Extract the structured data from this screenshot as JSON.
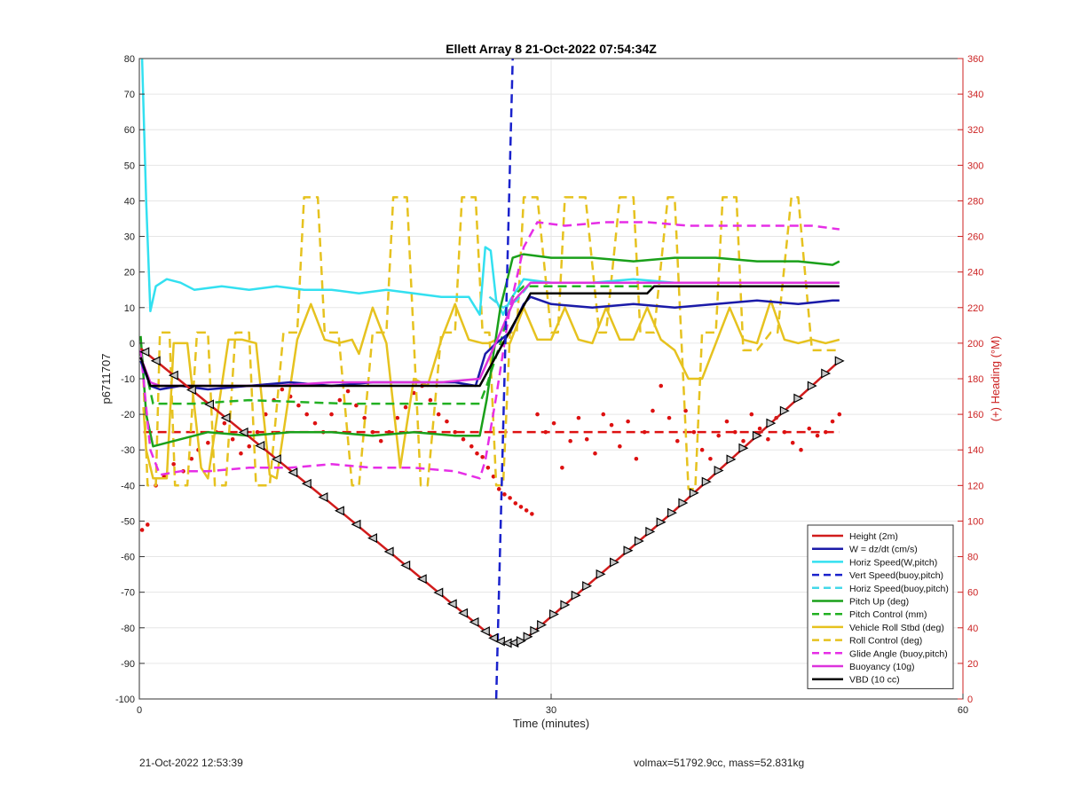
{
  "footer": {
    "timestamp": "21-Oct-2022 12:53:39",
    "volmax_mass": "volmax=51792.9cc, mass=52.831kg"
  },
  "chart_data": {
    "type": "line",
    "title": "Ellett Array 8 21-Oct-2022 07:54:34Z",
    "xlabel": "Time (minutes)",
    "ylabel": "p6711707",
    "ylabel_right": "(+) Heading (°M)",
    "xlim": [
      0,
      60
    ],
    "ylim": [
      -100,
      80
    ],
    "ylim_right": [
      0,
      360
    ],
    "xticks": [
      0,
      30,
      60
    ],
    "yticks": [
      -100,
      -90,
      -80,
      -70,
      -60,
      -50,
      -40,
      -30,
      -20,
      -10,
      0,
      10,
      20,
      30,
      40,
      50,
      60,
      70,
      80
    ],
    "yticks_right": [
      0,
      20,
      40,
      60,
      80,
      100,
      120,
      140,
      160,
      180,
      200,
      220,
      240,
      260,
      280,
      300,
      320,
      340,
      360
    ],
    "grid": true,
    "legend_position": "bottom-right",
    "colors": {
      "height": "#d11c1c",
      "w": "#1a1aa8",
      "horiz_w": "#33e0f0",
      "vert_buoy": "#1a22cc",
      "horiz_buoy": "#44d8e8",
      "pitch": "#1aa01a",
      "pitch_control": "#22b022",
      "roll": "#e6c21f",
      "roll_control": "#e6c21f",
      "glide": "#e62ee6",
      "buoyancy": "#dd33dd",
      "vbd": "#000000",
      "heading": "#dd1111",
      "right_axis": "#cc2222"
    },
    "series": [
      {
        "name": "Height (2m)",
        "style": "solid",
        "color": "height",
        "x": [
          0.1,
          13.0,
          26.0,
          27.0,
          28.0,
          39.0,
          51.0
        ],
        "y": [
          -1.5,
          -42.0,
          -83.5,
          -84.5,
          -83.5,
          -47.0,
          -5.0
        ]
      },
      {
        "name": "W = dz/dt (cm/s)",
        "style": "solid",
        "color": "w",
        "x": [
          0.1,
          0.8,
          1.5,
          3,
          5,
          8,
          11,
          14,
          17,
          20,
          23,
          24.5,
          25.2,
          26,
          27,
          28,
          28.5,
          30,
          33,
          36,
          39,
          42,
          45,
          48,
          50.5,
          51
        ],
        "y": [
          -5,
          -12,
          -13,
          -12,
          -13,
          -12,
          -11,
          -12,
          -11,
          -11,
          -11,
          -12,
          -3,
          0,
          3,
          11,
          13,
          11,
          10,
          11,
          10,
          11,
          12,
          11,
          12,
          12
        ]
      },
      {
        "name": "Horiz Speed(W,pitch)",
        "style": "solid",
        "color": "horiz_w",
        "x": [
          0.2,
          0.5,
          0.8,
          1.2,
          2,
          3,
          4,
          6,
          8,
          10,
          12,
          14,
          16,
          18,
          20,
          22,
          24,
          24.8,
          25.2,
          25.6,
          26,
          26.5,
          27,
          28,
          30,
          33,
          36,
          39,
          42,
          45,
          48,
          50,
          51
        ],
        "y": [
          80,
          40,
          9,
          16,
          18,
          17,
          15,
          16,
          15,
          16,
          15,
          15,
          14,
          15,
          14,
          13,
          13,
          8,
          27,
          26,
          12,
          8,
          12,
          18,
          17,
          17,
          18,
          17,
          17,
          17,
          17,
          17,
          17
        ]
      },
      {
        "name": "Vert Speed(buoy,pitch)",
        "style": "dashed",
        "color": "vert_buoy",
        "x": [
          26.0,
          27.2
        ],
        "y": [
          -100,
          80
        ]
      },
      {
        "name": "Horiz Speed(buoy,pitch)",
        "style": "dashed",
        "color": "horiz_buoy",
        "x": [
          25.5,
          26.5,
          27.5,
          28.5,
          30,
          35,
          40,
          45,
          50,
          51
        ],
        "y": [
          13,
          10,
          12,
          17,
          17,
          17,
          17,
          17,
          17,
          17
        ]
      },
      {
        "name": "Pitch Up (deg)",
        "style": "solid",
        "color": "pitch",
        "x": [
          0.1,
          0.5,
          1.0,
          2,
          3,
          5,
          8,
          11,
          14,
          17,
          20,
          23,
          24.8,
          25.3,
          26.3,
          27.2,
          28,
          30,
          33,
          36,
          39,
          42,
          45,
          48,
          50.5,
          51
        ],
        "y": [
          2,
          -20,
          -29,
          -28,
          -27,
          -25,
          -26,
          -25,
          -25,
          -26,
          -25,
          -26,
          -26,
          -16,
          10,
          24,
          25,
          24,
          24,
          23,
          24,
          24,
          23,
          23,
          22,
          23
        ]
      },
      {
        "name": "Pitch Control (mm)",
        "style": "dashed",
        "color": "pitch_control",
        "x": [
          0.1,
          0.6,
          1,
          4,
          8,
          15,
          22,
          24.8,
          25.3,
          26.3,
          27.2,
          28,
          35,
          40,
          45,
          51
        ],
        "y": [
          -3,
          -10,
          -17,
          -17,
          -16,
          -17,
          -17,
          -17,
          -12,
          0,
          13,
          16,
          16,
          16,
          16,
          16
        ]
      },
      {
        "name": "Vehicle Roll Stbd (deg)",
        "style": "solid",
        "color": "roll",
        "x": [
          0.3,
          0.5,
          1.0,
          2.0,
          2.5,
          3.5,
          4.5,
          5.0,
          6.5,
          7.5,
          8.5,
          9.5,
          10,
          11.5,
          12.5,
          13.5,
          14.5,
          15.5,
          16,
          17,
          18,
          19,
          20,
          21,
          22,
          23,
          24,
          25,
          25.5,
          26,
          26.5,
          27,
          28,
          29,
          30,
          31,
          32,
          33,
          34,
          35,
          36,
          37,
          38,
          39,
          40,
          41,
          42,
          43,
          44,
          45,
          46,
          47,
          48,
          49,
          50,
          51
        ],
        "y": [
          -18,
          -30,
          -38,
          -38,
          0,
          0,
          -35,
          -38,
          1,
          1,
          0,
          -37,
          -38,
          1,
          11,
          1,
          0,
          1,
          -3,
          10,
          0,
          -35,
          -10,
          -12,
          1,
          11,
          1,
          0,
          0,
          1,
          0,
          0,
          10,
          1,
          1,
          10,
          1,
          0,
          10,
          1,
          1,
          10,
          1,
          -2,
          -10,
          -10,
          0,
          10,
          1,
          0,
          12,
          1,
          0,
          1,
          0,
          1
        ]
      },
      {
        "name": "Roll Control (deg)",
        "style": "dashed",
        "color": "roll_control",
        "x": [
          0.3,
          0.6,
          1.2,
          1.5,
          2.2,
          2.6,
          3.5,
          4.2,
          5.0,
          5.5,
          6.3,
          7.0,
          8.0,
          8.5,
          9.5,
          10.5,
          11.5,
          12.0,
          13.0,
          13.5,
          14.5,
          15.5,
          16.0,
          17.0,
          18.0,
          18.5,
          19.5,
          20.5,
          21.0,
          22.0,
          23.0,
          23.5,
          24.5,
          25.0,
          25.5,
          26.0,
          26.5,
          27.0,
          27.5,
          28.0,
          29.0,
          30.0,
          30.5,
          31.0,
          32.5,
          33.5,
          34.0,
          35.0,
          36.0,
          36.5,
          37.5,
          38.5,
          39.0,
          40.0,
          40.5,
          41.0,
          42.0,
          42.5,
          43.5,
          44.0,
          45.0,
          46.0,
          46.5,
          47.5,
          48.0,
          49.0,
          50.0,
          51.0
        ],
        "y": [
          -10,
          -40,
          -40,
          3,
          3,
          -40,
          -40,
          3,
          3,
          -40,
          -40,
          3,
          3,
          -40,
          -40,
          3,
          3,
          41,
          41,
          3,
          3,
          -40,
          -40,
          3,
          3,
          41,
          41,
          -40,
          -40,
          3,
          3,
          41,
          41,
          3,
          3,
          -40,
          -40,
          3,
          3,
          41,
          41,
          3,
          3,
          41,
          41,
          3,
          3,
          41,
          41,
          3,
          3,
          41,
          41,
          -41,
          -41,
          3,
          3,
          41,
          41,
          -2,
          -2,
          3,
          3,
          41,
          41,
          -2,
          -2,
          -2
        ]
      },
      {
        "name": "Glide Angle (buoy,pitch)",
        "style": "dashed",
        "color": "glide",
        "x": [
          0.1,
          0.8,
          1.5,
          3,
          5,
          8,
          11,
          14,
          17,
          20,
          23,
          24.8,
          25.2,
          26,
          27,
          28,
          29,
          31,
          34,
          37,
          40,
          43,
          46,
          49,
          51
        ],
        "y": [
          -2,
          -30,
          -37,
          -36,
          -36,
          -35,
          -35,
          -34,
          -35,
          -35,
          -36,
          -38,
          -33,
          -15,
          10,
          27,
          34,
          33,
          34,
          34,
          33,
          33,
          33,
          33,
          32
        ]
      },
      {
        "name": "Buoyancy (10g)",
        "style": "solid",
        "color": "buoyancy",
        "x": [
          0.1,
          0.8,
          1.5,
          3,
          6,
          10,
          14,
          18,
          22,
          24.8,
          26.3,
          27.3,
          28.5,
          30,
          33,
          36,
          39,
          42,
          45,
          48,
          51
        ],
        "y": [
          -4,
          -11,
          -12,
          -12,
          -12,
          -12,
          -11,
          -11,
          -11,
          -10,
          3,
          12,
          17,
          17,
          17,
          17,
          17,
          17,
          17,
          17,
          17
        ]
      },
      {
        "name": "VBD (10 cc)",
        "style": "solid",
        "color": "vbd",
        "x": [
          0.1,
          0.8,
          24.8,
          26.5,
          28.5,
          37.0,
          37.5,
          51.0
        ],
        "y": [
          -4,
          -12,
          -12,
          0,
          14,
          14,
          16,
          16
        ]
      }
    ],
    "heading_reference": {
      "style": "dashed",
      "color": "heading",
      "value_right": 150,
      "x": [
        0.3,
        51
      ]
    },
    "heading_points_right": [
      [
        0.2,
        95
      ],
      [
        0.6,
        98
      ],
      [
        1.2,
        120
      ],
      [
        1.8,
        125
      ],
      [
        2.5,
        132
      ],
      [
        3.2,
        128
      ],
      [
        3.8,
        135
      ],
      [
        4.3,
        140
      ],
      [
        5.0,
        144
      ],
      [
        5.6,
        150
      ],
      [
        6.2,
        155
      ],
      [
        6.8,
        146
      ],
      [
        7.4,
        138
      ],
      [
        8.0,
        142
      ],
      [
        8.6,
        150
      ],
      [
        9.2,
        160
      ],
      [
        9.8,
        168
      ],
      [
        10.4,
        174
      ],
      [
        11.0,
        170
      ],
      [
        11.6,
        165
      ],
      [
        12.2,
        160
      ],
      [
        12.8,
        155
      ],
      [
        13.4,
        150
      ],
      [
        14.0,
        160
      ],
      [
        14.6,
        168
      ],
      [
        15.2,
        173
      ],
      [
        15.8,
        165
      ],
      [
        16.4,
        158
      ],
      [
        17.0,
        150
      ],
      [
        17.6,
        145
      ],
      [
        18.2,
        150
      ],
      [
        18.8,
        158
      ],
      [
        19.4,
        164
      ],
      [
        20.0,
        172
      ],
      [
        20.6,
        176
      ],
      [
        21.2,
        168
      ],
      [
        21.8,
        160
      ],
      [
        22.4,
        156
      ],
      [
        23.0,
        150
      ],
      [
        23.6,
        146
      ],
      [
        24.2,
        142
      ],
      [
        24.6,
        138
      ],
      [
        25.0,
        136
      ],
      [
        25.4,
        130
      ],
      [
        25.8,
        125
      ],
      [
        26.2,
        118
      ],
      [
        26.6,
        115
      ],
      [
        27.0,
        113
      ],
      [
        27.4,
        110
      ],
      [
        27.8,
        108
      ],
      [
        28.2,
        106
      ],
      [
        28.6,
        104
      ],
      [
        29.0,
        160
      ],
      [
        29.6,
        150
      ],
      [
        30.2,
        155
      ],
      [
        30.8,
        130
      ],
      [
        31.4,
        145
      ],
      [
        32.0,
        158
      ],
      [
        32.6,
        146
      ],
      [
        33.2,
        138
      ],
      [
        33.8,
        160
      ],
      [
        34.4,
        154
      ],
      [
        35.0,
        142
      ],
      [
        35.6,
        156
      ],
      [
        36.2,
        135
      ],
      [
        36.8,
        150
      ],
      [
        37.4,
        162
      ],
      [
        38.0,
        176
      ],
      [
        38.6,
        158
      ],
      [
        39.2,
        145
      ],
      [
        39.8,
        162
      ],
      [
        40.4,
        150
      ],
      [
        41.0,
        140
      ],
      [
        41.6,
        135
      ],
      [
        42.2,
        148
      ],
      [
        42.8,
        156
      ],
      [
        43.4,
        150
      ],
      [
        44.0,
        145
      ],
      [
        44.6,
        160
      ],
      [
        45.2,
        152
      ],
      [
        45.8,
        146
      ],
      [
        46.4,
        158
      ],
      [
        47.0,
        150
      ],
      [
        47.6,
        144
      ],
      [
        48.2,
        140
      ],
      [
        48.8,
        152
      ],
      [
        49.4,
        148
      ],
      [
        50.0,
        150
      ],
      [
        50.5,
        156
      ],
      [
        51.0,
        160
      ]
    ],
    "markers": {
      "note": "triangle markers along Height trace",
      "down_x": [
        0.4,
        1.2,
        2.5,
        3.8,
        5.1,
        6.3,
        7.6,
        8.8,
        10.0,
        11.2,
        12.2,
        13.4,
        14.6,
        15.8,
        17.0,
        18.2,
        19.4,
        20.6,
        21.8,
        22.8,
        23.6,
        24.4,
        25.2,
        25.8,
        26.3,
        26.8,
        27.3
      ],
      "up_x": [
        27.8,
        28.3,
        28.8,
        29.3,
        30.2,
        31.0,
        31.8,
        32.6,
        33.6,
        34.6,
        35.6,
        36.4,
        37.2,
        38.0,
        38.8,
        39.6,
        40.4,
        41.3,
        42.2,
        43.1,
        44.0,
        45.0,
        46.0,
        47.0,
        48.0,
        49.0,
        50.0,
        51.0
      ]
    }
  }
}
